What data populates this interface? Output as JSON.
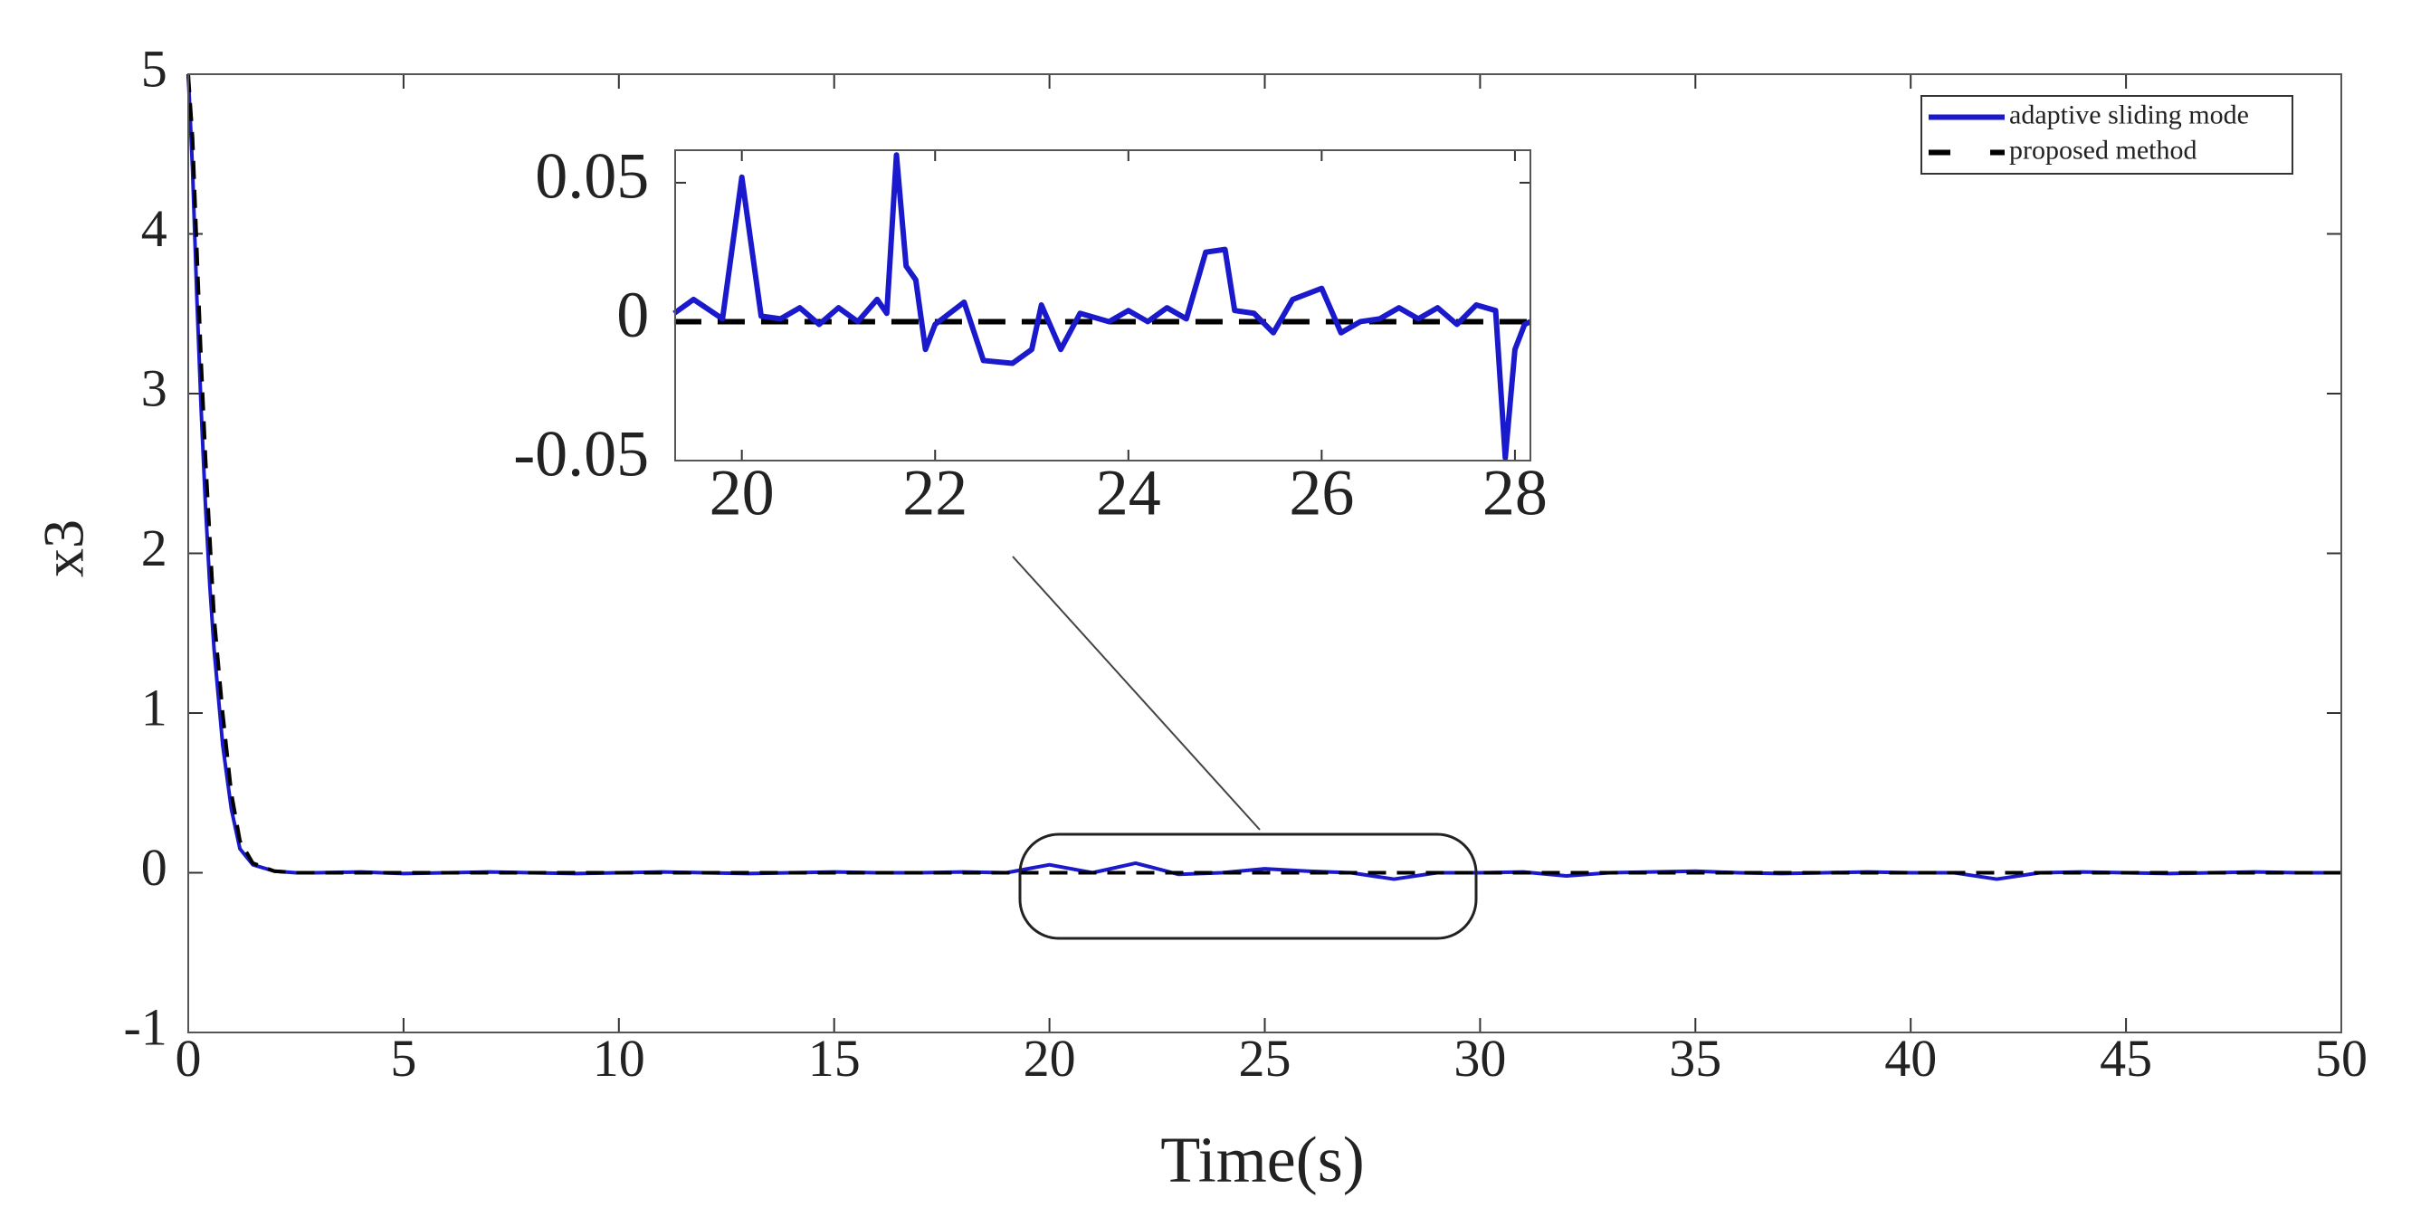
{
  "chart_data": [
    {
      "type": "line",
      "xlabel": "Time(s)",
      "ylabel": "x3",
      "xlim": [
        0,
        50
      ],
      "ylim": [
        -1,
        5
      ],
      "xticks": [
        0,
        5,
        10,
        15,
        20,
        25,
        30,
        35,
        40,
        45,
        50
      ],
      "yticks": [
        -1,
        0,
        1,
        2,
        3,
        4,
        5
      ],
      "legend": "upper right",
      "x": [
        0,
        0.1,
        0.2,
        0.3,
        0.4,
        0.5,
        0.6,
        0.8,
        1,
        1.2,
        1.5,
        2,
        2.5,
        3,
        4,
        5,
        6,
        7,
        8,
        9,
        10,
        11,
        12,
        13,
        14,
        15,
        16,
        17,
        18,
        19,
        20,
        21,
        22,
        23,
        24,
        25,
        26,
        27,
        28,
        29,
        30,
        31,
        32,
        33,
        34,
        35,
        36,
        37,
        38,
        39,
        40,
        41,
        42,
        43,
        44,
        45,
        46,
        47,
        48,
        49,
        50
      ],
      "series": [
        {
          "name": "adaptive sliding mode",
          "color": "#1a1acc",
          "linestyle": "solid",
          "values": [
            5,
            4.4,
            3.6,
            2.9,
            2.3,
            1.8,
            1.4,
            0.8,
            0.4,
            0.15,
            0.05,
            0.01,
            0,
            0,
            0.005,
            -0.005,
            0,
            0.005,
            0,
            -0.005,
            0,
            0.005,
            0,
            -0.005,
            0,
            0.005,
            0,
            0,
            0.005,
            0,
            0.05,
            0,
            0.06,
            -0.01,
            0,
            0.025,
            0.01,
            0,
            -0.04,
            0,
            0,
            0.005,
            -0.02,
            0,
            0.005,
            0.01,
            0,
            -0.005,
            0,
            0.005,
            0,
            0,
            -0.04,
            0,
            0.005,
            0,
            -0.005,
            0,
            0.005,
            0,
            0
          ]
        },
        {
          "name": "proposed method",
          "color": "#000000",
          "linestyle": "dashed",
          "values": [
            5,
            4.6,
            3.9,
            3.2,
            2.6,
            2.1,
            1.6,
            1.0,
            0.5,
            0.2,
            0.06,
            0.01,
            0,
            0,
            0,
            0,
            0,
            0,
            0,
            0,
            0,
            0,
            0,
            0,
            0,
            0,
            0,
            0,
            0,
            0,
            0,
            0,
            0,
            0,
            0,
            0,
            0,
            0,
            0,
            0,
            0,
            0,
            0,
            0,
            0,
            0,
            0,
            0,
            0,
            0,
            0,
            0,
            0,
            0,
            0,
            0,
            0,
            0,
            0,
            0,
            0
          ]
        }
      ]
    },
    {
      "type": "line",
      "xlim": [
        19.31,
        28.16
      ],
      "ylim": [
        -0.05,
        0.0617
      ],
      "xticks": [
        20,
        22,
        24,
        26,
        28
      ],
      "yticks": [
        -0.05,
        0,
        0.05
      ],
      "x": [
        19.3,
        19.5,
        19.8,
        20.0,
        20.2,
        20.4,
        20.6,
        20.8,
        21.0,
        21.2,
        21.4,
        21.5,
        21.6,
        21.7,
        21.8,
        21.9,
        22.0,
        22.3,
        22.5,
        22.8,
        23.0,
        23.1,
        23.3,
        23.5,
        23.8,
        24.0,
        24.2,
        24.4,
        24.6,
        24.8,
        25.0,
        25.1,
        25.3,
        25.5,
        25.7,
        26.0,
        26.2,
        26.4,
        26.6,
        26.8,
        27.0,
        27.2,
        27.4,
        27.6,
        27.8,
        27.9,
        28.0,
        28.1,
        28.16
      ],
      "series": [
        {
          "color": "#000000",
          "linestyle": "dashed",
          "values": [
            0,
            0,
            0,
            0,
            0,
            0,
            0,
            0,
            0,
            0,
            0,
            0,
            0,
            0,
            0,
            0,
            0,
            0,
            0,
            0,
            0,
            0,
            0,
            0,
            0,
            0,
            0,
            0,
            0,
            0,
            0,
            0,
            0,
            0,
            0,
            0,
            0,
            0,
            0,
            0,
            0,
            0,
            0,
            0,
            0,
            0,
            0,
            0,
            0
          ]
        },
        {
          "color": "#1a1acc",
          "linestyle": "solid",
          "values": [
            0.003,
            0.008,
            0.001,
            0.052,
            0.002,
            0.001,
            0.005,
            -0.001,
            0.005,
            0,
            0.008,
            0.003,
            0.06,
            0.02,
            0.015,
            -0.01,
            -0.001,
            0.007,
            -0.014,
            -0.015,
            -0.01,
            0.006,
            -0.01,
            0.003,
            0,
            0.004,
            0,
            0.005,
            0.001,
            0.025,
            0.026,
            0.004,
            0.003,
            -0.004,
            0.008,
            0.012,
            -0.004,
            0,
            0.001,
            0.005,
            0.001,
            0.005,
            -0.001,
            0.006,
            0.004,
            -0.049,
            -0.01,
            -0.001,
            0
          ]
        }
      ]
    }
  ]
}
